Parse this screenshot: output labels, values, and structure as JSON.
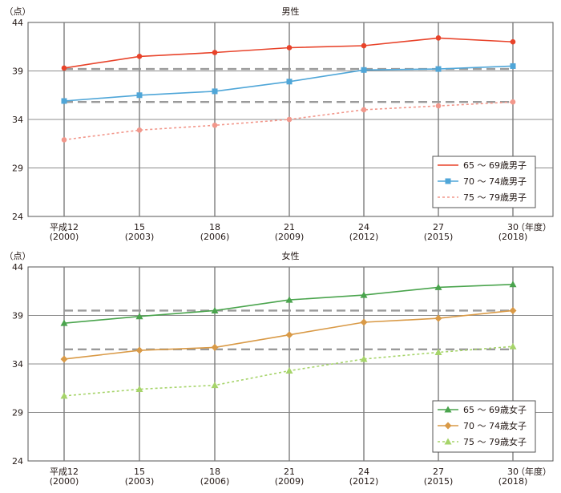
{
  "chart_data": [
    {
      "type": "line",
      "title": "男性",
      "ylabel": "（点）",
      "xlabel": "（年度）",
      "ylim": [
        24,
        44
      ],
      "y_ticks": [
        "44",
        "39",
        "34",
        "29",
        "24"
      ],
      "categories": [
        "平成12",
        "15",
        "18",
        "21",
        "24",
        "27",
        "30"
      ],
      "categories_sub": [
        "(2000)",
        "(2003)",
        "(2006)",
        "(2009)",
        "(2012)",
        "(2015)",
        "(2018)"
      ],
      "series": [
        {
          "name": "65 ～ 69歳男子",
          "color": "#e8432a",
          "marker": "circle",
          "dashed": false,
          "values": [
            39.3,
            40.5,
            40.9,
            41.4,
            41.6,
            42.4,
            42.0
          ]
        },
        {
          "name": "70 ～ 74歳男子",
          "color": "#4fa6d8",
          "marker": "square",
          "dashed": false,
          "values": [
            35.9,
            36.5,
            36.9,
            37.9,
            39.1,
            39.2,
            39.5
          ]
        },
        {
          "name": "75 ～ 79歳男子",
          "color": "#f2978b",
          "marker": "circle",
          "dashed": true,
          "values": [
            31.9,
            32.9,
            33.4,
            34.0,
            35.0,
            35.4,
            35.8
          ]
        }
      ],
      "reference_lines": [
        39.2,
        35.8
      ]
    },
    {
      "type": "line",
      "title": "女性",
      "ylabel": "（点）",
      "xlabel": "（年度）",
      "ylim": [
        24,
        44
      ],
      "y_ticks": [
        "44",
        "39",
        "34",
        "29",
        "24"
      ],
      "categories": [
        "平成12",
        "15",
        "18",
        "21",
        "24",
        "27",
        "30"
      ],
      "categories_sub": [
        "(2000)",
        "(2003)",
        "(2006)",
        "(2009)",
        "(2012)",
        "(2015)",
        "(2018)"
      ],
      "series": [
        {
          "name": "65 ～ 69歳女子",
          "color": "#4aa44d",
          "marker": "triangle",
          "dashed": false,
          "values": [
            38.2,
            38.9,
            39.5,
            40.6,
            41.1,
            41.9,
            42.2
          ]
        },
        {
          "name": "70 ～ 74歳女子",
          "color": "#d99a47",
          "marker": "diamond",
          "dashed": false,
          "values": [
            34.5,
            35.4,
            35.7,
            37.0,
            38.3,
            38.7,
            39.5
          ]
        },
        {
          "name": "75 ～ 79歳女子",
          "color": "#a6d46a",
          "marker": "triangle",
          "dashed": true,
          "values": [
            30.7,
            31.4,
            31.8,
            33.3,
            34.5,
            35.2,
            35.8
          ]
        }
      ],
      "reference_lines": [
        39.5,
        35.5
      ]
    }
  ]
}
